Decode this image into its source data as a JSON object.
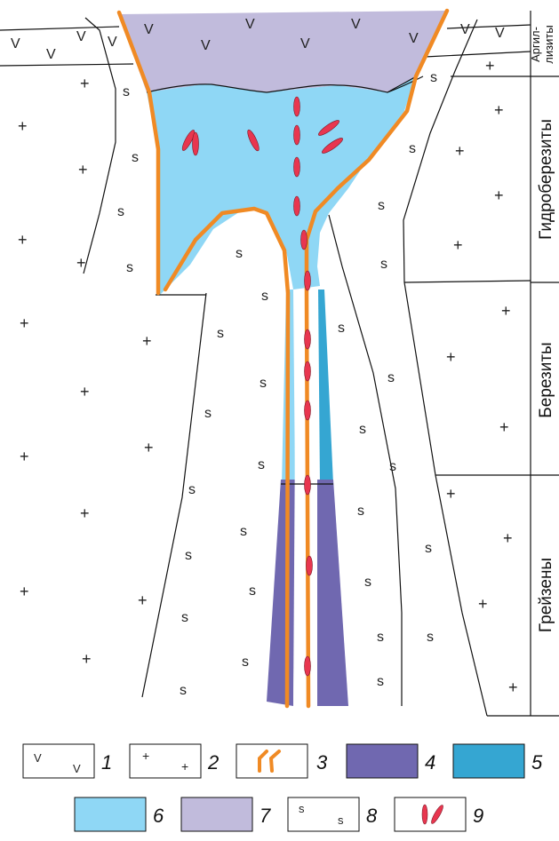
{
  "zones": {
    "argillizites_line1": "Аргил-",
    "argillizites_line2": "лизиты",
    "hydroberesites": "Гидроберезиты",
    "beresites": "Березиты",
    "greisens": "Грейзены"
  },
  "symbols": {
    "volcanic": "V",
    "granite": "+",
    "sericite": "s"
  },
  "legend": {
    "n1": "1",
    "n2": "2",
    "n3": "3",
    "n4": "4",
    "n5": "5",
    "n6": "6",
    "n7": "7",
    "n8": "8",
    "n9": "9"
  },
  "colors": {
    "lilac": "#c1bbdc",
    "light_blue": "#8fd7f5",
    "medium_blue": "#35a6d2",
    "purple": "#7068b0",
    "orange": "#f08a24",
    "red": "#e8364f"
  }
}
